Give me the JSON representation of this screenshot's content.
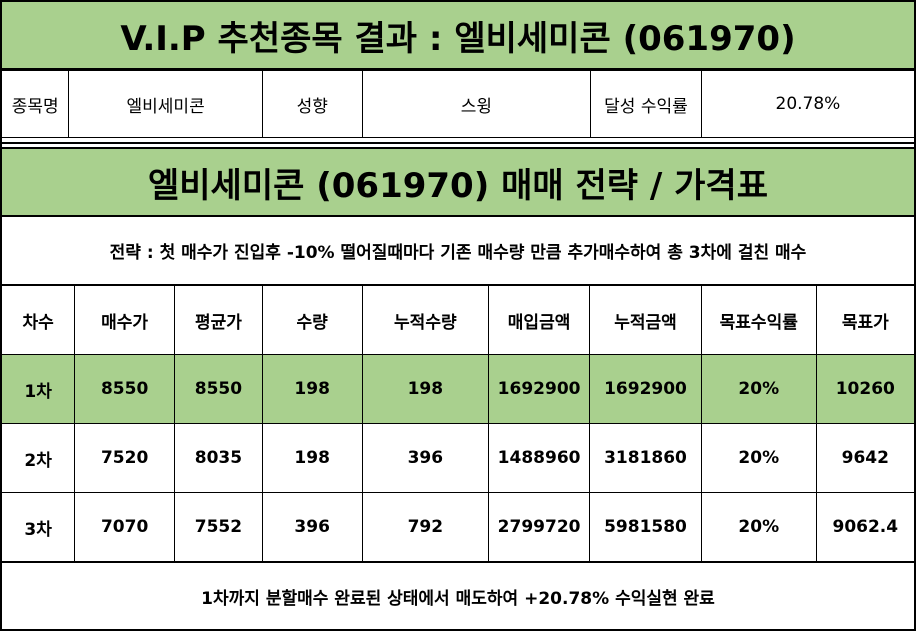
{
  "title": "V.I.P 추천종목 결과 : 엘비세미콘 (061970)",
  "info": {
    "name_label": "종목명",
    "name_value": "엘비세미콘",
    "type_label": "성향",
    "type_value": "스윙",
    "return_label": "달성 수익률",
    "return_value": "20.78%"
  },
  "strategy": {
    "title": "엘비세미콘 (061970) 매매 전략 / 가격표",
    "description": "전략 : 첫 매수가 진입후 -10% 떨어질때마다 기존 매수량 만큼 추가매수하여 총 3차에 걸친 매수"
  },
  "table": {
    "headers": [
      "차수",
      "매수가",
      "평균가",
      "수량",
      "누적수량",
      "매입금액",
      "누적금액",
      "목표수익률",
      "목표가"
    ],
    "rows": [
      [
        "1차",
        "8550",
        "8550",
        "198",
        "198",
        "1692900",
        "1692900",
        "20%",
        "10260"
      ],
      [
        "2차",
        "7520",
        "8035",
        "198",
        "396",
        "1488960",
        "3181860",
        "20%",
        "9642"
      ],
      [
        "3차",
        "7070",
        "7552",
        "396",
        "792",
        "2799720",
        "5981580",
        "20%",
        "9062.4"
      ]
    ]
  },
  "footer": "1차까지 분할매수 완료된 상태에서 매도하여 +20.78% 수익실현 완료",
  "colors": {
    "highlight": "#a9d08e",
    "border": "#000000"
  }
}
